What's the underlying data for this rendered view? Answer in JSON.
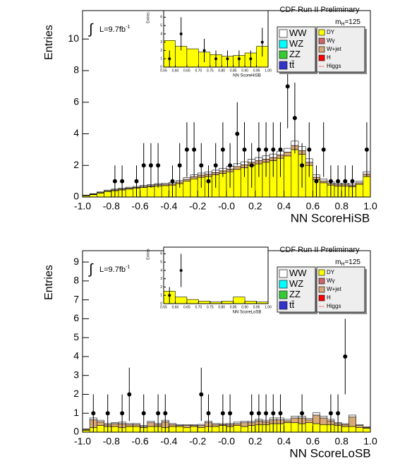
{
  "chart_data": [
    {
      "type": "histogram",
      "title": "CDF Run II Preliminary",
      "mass_label": [
        "m",
        "H",
        "=125"
      ],
      "lumi_label": [
        "∫",
        "L=9.7fb",
        "-1"
      ],
      "xlabel": "NN ScoreHiSB",
      "ylabel": "Entries",
      "xlim": [
        -1,
        1
      ],
      "ylim": [
        0,
        11.8
      ],
      "xticks": [
        {
          "value": -1,
          "label": "-1.0"
        },
        {
          "value": -0.8,
          "label": "-0.8"
        },
        {
          "value": -0.6,
          "label": "-0.6"
        },
        {
          "value": -0.4,
          "label": "-0.4"
        },
        {
          "value": -0.2,
          "label": "-0.2"
        },
        {
          "value": 0,
          "label": "-0.0"
        },
        0.2,
        0.4,
        0.6,
        0.8,
        {
          "value": 1,
          "label": "1.0"
        }
      ],
      "yticks": [
        0,
        2,
        4,
        6,
        8,
        10
      ],
      "bins": [
        -1,
        -0.95,
        -0.9,
        -0.85,
        -0.8,
        -0.75,
        -0.7,
        -0.65,
        -0.6,
        -0.55,
        -0.5,
        -0.45,
        -0.4,
        -0.35,
        -0.3,
        -0.25,
        -0.2,
        -0.15,
        -0.1,
        -0.05,
        0,
        0.05,
        0.1,
        0.15,
        0.2,
        0.25,
        0.3,
        0.35,
        0.4,
        0.45,
        0.5,
        0.55,
        0.6,
        0.65,
        0.7,
        0.75,
        0.8,
        0.85,
        0.9,
        0.95,
        1
      ],
      "series": [
        {
          "name": "WW",
          "color": "#ffffff",
          "values": [
            0.02,
            0.03,
            0.04,
            0.05,
            0.05,
            0.06,
            0.06,
            0.06,
            0.07,
            0.07,
            0.07,
            0.08,
            0.08,
            0.09,
            0.1,
            0.12,
            0.13,
            0.14,
            0.15,
            0.16,
            0.17,
            0.18,
            0.19,
            0.2,
            0.2,
            0.21,
            0.22,
            0.23,
            0.24,
            0.28,
            0.26,
            0.22,
            0.15,
            0.12,
            0.1,
            0.08,
            0.08,
            0.08,
            0.1,
            0.15
          ]
        },
        {
          "name": "WZ",
          "color": "#00ffff"
        },
        {
          "name": "ZZ",
          "color": "#33cc33"
        },
        {
          "name": "tt̄",
          "color": "#3333cc"
        },
        {
          "name": "DY",
          "color": "#ffff00",
          "values": [
            0.08,
            0.15,
            0.25,
            0.35,
            0.4,
            0.45,
            0.5,
            0.55,
            0.6,
            0.65,
            0.7,
            0.72,
            0.75,
            0.85,
            1.0,
            1.15,
            1.25,
            1.3,
            1.4,
            1.5,
            1.6,
            1.75,
            1.85,
            2.0,
            2.1,
            2.2,
            2.3,
            2.45,
            2.6,
            3.0,
            2.7,
            2.0,
            1.1,
            0.9,
            0.75,
            0.7,
            0.7,
            0.65,
            0.8,
            1.3
          ]
        },
        {
          "name": "Wγ",
          "color": "#cc6666"
        },
        {
          "name": "W+jet",
          "color": "#d9a877",
          "values": [
            0.02,
            0.03,
            0.03,
            0.04,
            0.05,
            0.05,
            0.06,
            0.06,
            0.07,
            0.07,
            0.08,
            0.08,
            0.09,
            0.1,
            0.12,
            0.13,
            0.14,
            0.15,
            0.15,
            0.16,
            0.17,
            0.18,
            0.19,
            0.2,
            0.2,
            0.2,
            0.2,
            0.22,
            0.24,
            0.26,
            0.24,
            0.2,
            0.15,
            0.12,
            0.1,
            0.1,
            0.1,
            0.1,
            0.1,
            0.15
          ]
        },
        {
          "name": "H",
          "color": "#ff0000"
        },
        {
          "name": "Higgs",
          "color": "#ff0000",
          "style": "dotted"
        }
      ],
      "data_values": [
        null,
        null,
        null,
        null,
        1,
        1,
        null,
        1,
        2,
        2,
        2,
        null,
        1,
        2,
        3,
        3,
        2,
        1,
        2,
        3,
        2,
        4,
        3,
        2,
        3,
        3,
        3,
        3,
        7,
        5,
        2,
        3,
        1,
        3,
        1,
        1,
        1,
        1,
        null,
        3
      ],
      "data_errors": [
        null,
        null,
        null,
        null,
        1,
        1,
        null,
        1,
        1.41,
        1.41,
        1.41,
        null,
        1,
        1.41,
        1.73,
        1.73,
        1.41,
        1,
        1.41,
        1.73,
        1.41,
        2,
        1.73,
        1.41,
        1.73,
        1.73,
        1.73,
        1.73,
        2.65,
        2.24,
        1.41,
        1.73,
        1,
        1.73,
        1,
        1,
        1,
        1,
        null,
        1.73
      ]
    },
    {
      "type": "histogram",
      "xlabel": "NN ScoreHiSB",
      "ylabel": "Entries",
      "xlim": [
        0.55,
        1
      ],
      "ylim": [
        0,
        6.8
      ],
      "xticks": [
        0.55,
        {
          "value": 0.6,
          "label": "0.60"
        },
        0.65,
        {
          "value": 0.7,
          "label": "0.70"
        },
        0.75,
        {
          "value": 0.8,
          "label": "0.80"
        },
        0.85,
        {
          "value": 0.9,
          "label": "0.90"
        },
        0.95,
        {
          "value": 1,
          "label": "1.00"
        }
      ],
      "yticks": [
        0,
        1,
        2,
        3,
        4,
        5,
        6
      ],
      "bins": [
        0.55,
        0.6,
        0.65,
        0.7,
        0.75,
        0.8,
        0.85,
        0.9,
        0.95,
        1
      ],
      "series": [
        {
          "color": "#ffff00",
          "values": [
            3.2,
            2.5,
            2.2,
            1.8,
            1.5,
            1.3,
            1.4,
            1.7,
            2.5
          ]
        }
      ],
      "data_values": [
        1,
        4,
        null,
        2,
        1,
        1,
        1,
        1,
        3
      ],
      "data_errors": [
        1,
        2,
        null,
        1.41,
        1,
        1,
        1,
        1,
        1.73
      ]
    },
    {
      "type": "histogram",
      "title": "CDF Run II Preliminary",
      "mass_label": [
        "m",
        "H",
        "=125"
      ],
      "lumi_label": [
        "∫",
        "L=9.7fb",
        "-1"
      ],
      "xlabel": "NN ScoreLoSB",
      "ylabel": "Entries",
      "xlim": [
        -1,
        1
      ],
      "ylim": [
        0,
        9.6
      ],
      "xticks": [
        {
          "value": -1,
          "label": "-1.0"
        },
        {
          "value": -0.8,
          "label": "-0.8"
        },
        {
          "value": -0.6,
          "label": "-0.6"
        },
        {
          "value": -0.4,
          "label": "-0.4"
        },
        {
          "value": -0.2,
          "label": "-0.2"
        },
        {
          "value": 0,
          "label": "-0.0"
        },
        0.2,
        0.4,
        0.6,
        0.8,
        {
          "value": 1,
          "label": "1.0"
        }
      ],
      "yticks": [
        0,
        1,
        2,
        3,
        4,
        5,
        6,
        7,
        8,
        9
      ],
      "bins": [
        -1,
        -0.95,
        -0.9,
        -0.85,
        -0.8,
        -0.75,
        -0.7,
        -0.65,
        -0.6,
        -0.55,
        -0.5,
        -0.45,
        -0.4,
        -0.35,
        -0.3,
        -0.25,
        -0.2,
        -0.15,
        -0.1,
        -0.05,
        0,
        0.05,
        0.1,
        0.15,
        0.2,
        0.25,
        0.3,
        0.35,
        0.4,
        0.45,
        0.5,
        0.55,
        0.6,
        0.65,
        0.7,
        0.75,
        0.8,
        0.85,
        0.9,
        0.95,
        1
      ],
      "series": [
        {
          "name": "WW",
          "color": "#ffffff",
          "values": [
            0.02,
            0.1,
            0.08,
            0.06,
            0.06,
            0.08,
            0.06,
            0.06,
            0.05,
            0.08,
            0.06,
            0.08,
            0.06,
            0.05,
            0.05,
            0.05,
            0.06,
            0.08,
            0.06,
            0.05,
            0.06,
            0.08,
            0.08,
            0.08,
            0.08,
            0.08,
            0.1,
            0.1,
            0.08,
            0.1,
            0.1,
            0.08,
            0.12,
            0.1,
            0.08,
            0.06,
            0.05,
            0.1,
            0.05,
            0.03
          ]
        },
        {
          "name": "WZ",
          "color": "#00ffff"
        },
        {
          "name": "ZZ",
          "color": "#33cc33"
        },
        {
          "name": "tt̄",
          "color": "#3333cc"
        },
        {
          "name": "DY",
          "color": "#ffff00",
          "values": [
            0.1,
            0.25,
            0.35,
            0.3,
            0.3,
            0.25,
            0.3,
            0.3,
            0.25,
            0.3,
            0.3,
            0.25,
            0.3,
            0.3,
            0.25,
            0.3,
            0.25,
            0.3,
            0.3,
            0.35,
            0.3,
            0.35,
            0.3,
            0.35,
            0.4,
            0.4,
            0.45,
            0.45,
            0.5,
            0.5,
            0.45,
            0.5,
            0.45,
            0.4,
            0.4,
            0.35,
            0.3,
            0.3,
            0.25,
            0.2
          ]
        },
        {
          "name": "Wγ",
          "color": "#cc6666"
        },
        {
          "name": "W+jet",
          "color": "#d9a877",
          "values": [
            0.05,
            0.4,
            0.2,
            0.1,
            0.15,
            0.2,
            0.1,
            0.1,
            0.05,
            0.2,
            0.1,
            0.3,
            0.1,
            0.05,
            0.1,
            0.05,
            0.1,
            0.2,
            0.1,
            0.05,
            0.1,
            0.1,
            0.2,
            0.15,
            0.2,
            0.15,
            0.2,
            0.2,
            0.1,
            0.25,
            0.3,
            0.15,
            0.45,
            0.35,
            0.2,
            0.1,
            0.1,
            0.5,
            0.1,
            0.05
          ]
        },
        {
          "name": "H",
          "color": "#ff0000"
        },
        {
          "name": "Higgs",
          "color": "#ff0000",
          "style": "dotted"
        }
      ],
      "data_values": [
        null,
        1,
        null,
        1,
        null,
        1,
        2,
        null,
        1,
        null,
        1,
        1,
        null,
        null,
        null,
        null,
        2,
        1,
        null,
        1,
        1,
        null,
        null,
        1,
        1,
        1,
        1,
        1,
        null,
        null,
        1,
        null,
        null,
        null,
        1,
        1,
        4,
        null,
        null,
        null
      ],
      "data_errors": [
        null,
        1,
        null,
        1,
        null,
        1,
        1.41,
        null,
        1,
        null,
        1,
        1,
        null,
        null,
        null,
        null,
        1.41,
        1,
        null,
        1,
        1,
        null,
        null,
        1,
        1,
        1,
        1,
        1,
        null,
        null,
        1,
        null,
        null,
        null,
        1,
        1,
        2,
        null,
        null,
        null
      ]
    },
    {
      "type": "histogram",
      "xlabel": "NN ScoreLoSB",
      "ylabel": "Entries",
      "xlim": [
        0.55,
        1
      ],
      "ylim": [
        0,
        6.8
      ],
      "xticks": [
        0.55,
        {
          "value": 0.6,
          "label": "0.60"
        },
        0.65,
        {
          "value": 0.7,
          "label": "0.70"
        },
        0.75,
        {
          "value": 0.8,
          "label": "0.80"
        },
        0.85,
        {
          "value": 0.9,
          "label": "0.90"
        },
        0.95,
        {
          "value": 1,
          "label": "1.00"
        }
      ],
      "yticks": [
        0,
        1,
        2,
        3,
        4,
        5,
        6
      ],
      "bins": [
        0.55,
        0.6,
        0.65,
        0.7,
        0.75,
        0.8,
        0.85,
        0.9,
        0.95,
        1
      ],
      "series": [
        {
          "color": "#ffff00",
          "values": [
            1.5,
            0.8,
            0.5,
            0.3,
            0.2,
            0.3,
            0.8,
            0.3,
            0.2
          ]
        }
      ],
      "data_values": [
        1,
        4,
        null,
        null,
        null,
        null,
        null,
        null,
        null
      ],
      "data_errors": [
        1,
        2,
        null,
        null,
        null,
        null,
        null,
        null,
        null
      ]
    }
  ]
}
